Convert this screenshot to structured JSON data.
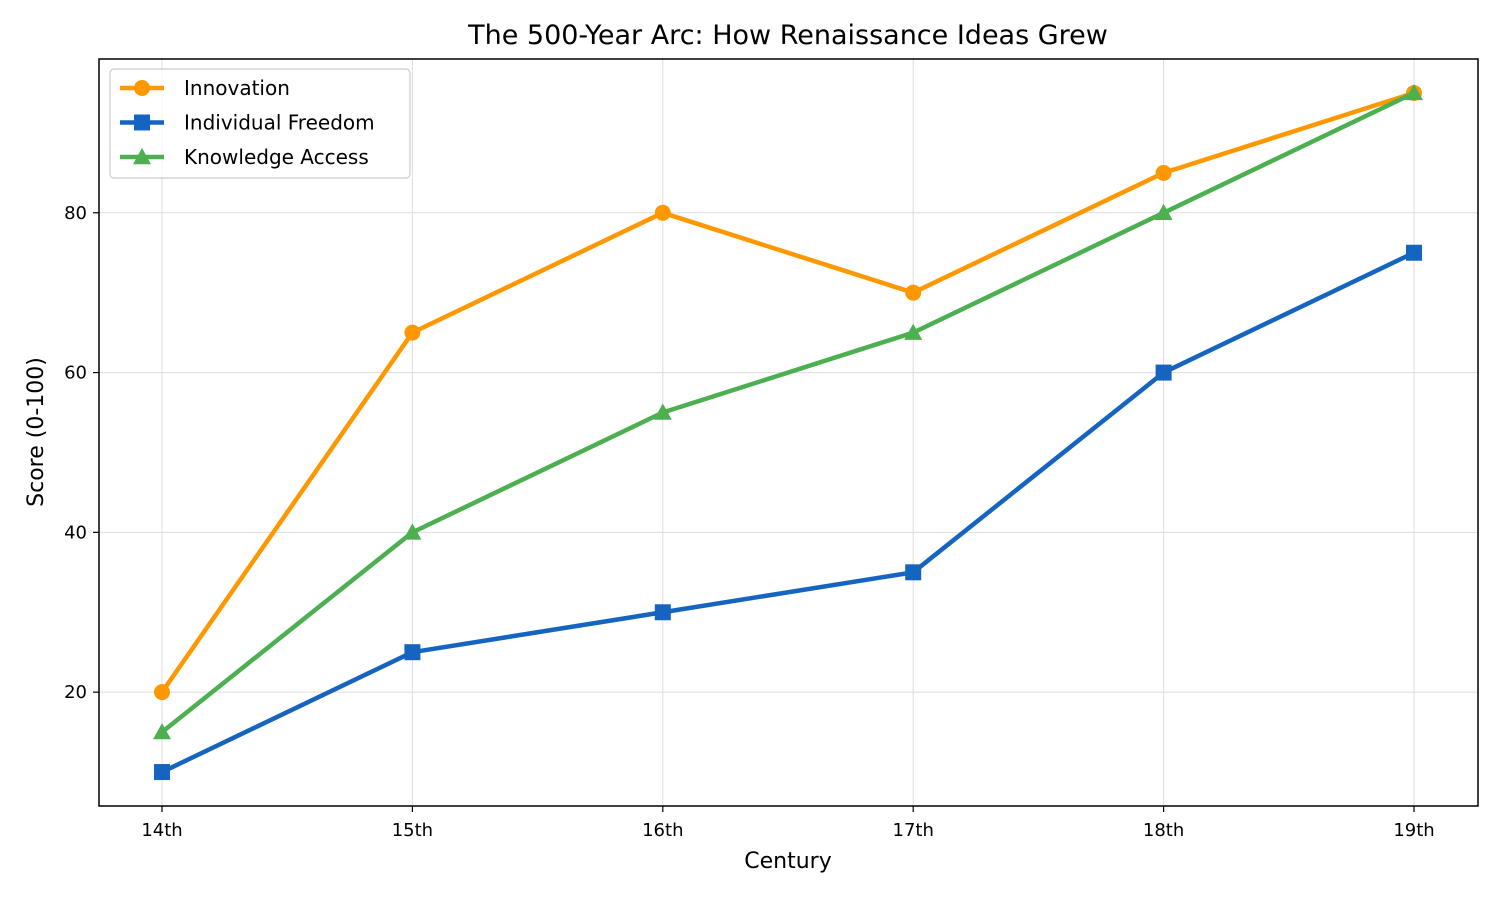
{
  "chart_data": {
    "type": "line",
    "title": "The 500-Year Arc: How Renaissance Ideas Grew",
    "xlabel": "Century",
    "ylabel": "Score (0-100)",
    "categories": [
      "14th",
      "15th",
      "16th",
      "17th",
      "18th",
      "19th"
    ],
    "ylim": [
      5.75,
      99.25
    ],
    "yticks": [
      20,
      40,
      60,
      80
    ],
    "grid": true,
    "legend_position": "top-left",
    "series": [
      {
        "name": "Innovation",
        "values": [
          20,
          65,
          80,
          70,
          85,
          95
        ],
        "color": "#ff9800",
        "marker": "circle"
      },
      {
        "name": "Individual Freedom",
        "values": [
          10,
          25,
          30,
          35,
          60,
          75
        ],
        "color": "#1565c0",
        "marker": "square"
      },
      {
        "name": "Knowledge Access",
        "values": [
          15,
          40,
          55,
          65,
          80,
          95
        ],
        "color": "#4caf50",
        "marker": "triangle"
      }
    ]
  }
}
